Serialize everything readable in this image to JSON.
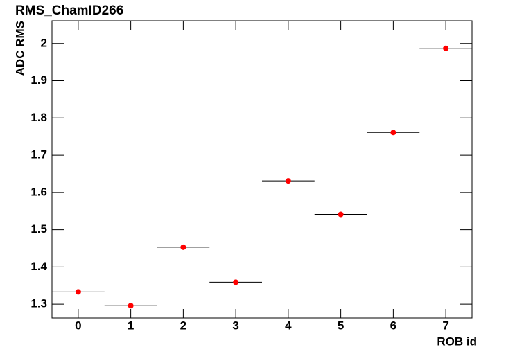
{
  "chart_data": {
    "type": "scatter",
    "title": "RMS_ChamID266",
    "x_label": "ROB id",
    "y_label": "ADC RMS",
    "series": [
      {
        "name": "RMS",
        "color": "#ff0000",
        "x": [
          0,
          1,
          2,
          3,
          4,
          5,
          6,
          7
        ],
        "xerr": [
          0.5,
          0.5,
          0.5,
          0.5,
          0.5,
          0.5,
          0.5,
          0.5
        ],
        "values": [
          1.333,
          1.296,
          1.453,
          1.359,
          1.631,
          1.541,
          1.761,
          1.987
        ]
      }
    ],
    "xlim": [
      -0.5,
      7.5
    ],
    "xticks": [
      0,
      1,
      2,
      3,
      4,
      5,
      6,
      7
    ],
    "ylim": [
      1.263,
      2.061
    ],
    "yticks": [
      1.3,
      1.4,
      1.5,
      1.6,
      1.7,
      1.8,
      1.9,
      2
    ]
  }
}
